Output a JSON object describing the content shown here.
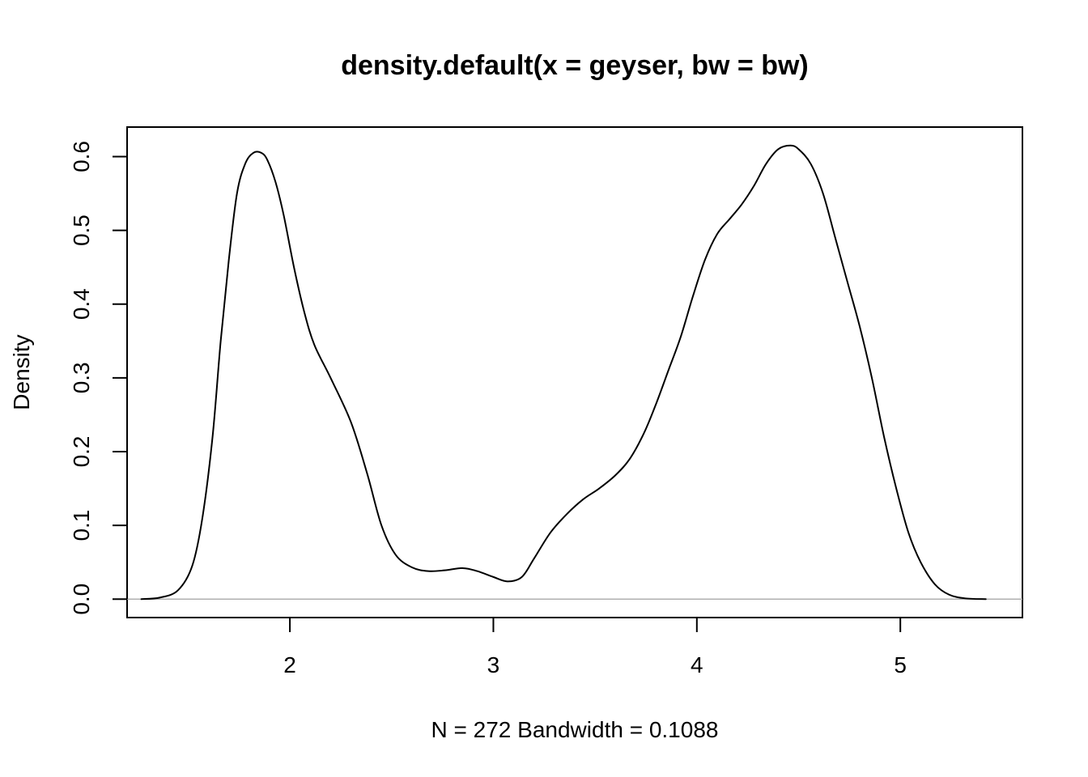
{
  "chart_data": {
    "type": "line",
    "title": "density.default(x = geyser, bw = bw)",
    "xlabel": "N = 272   Bandwidth = 0.1088",
    "ylabel": "Density",
    "xlim": [
      1.2,
      5.6
    ],
    "ylim": [
      -0.025,
      0.64
    ],
    "xticks": [
      2,
      3,
      4,
      5
    ],
    "xtick_labels": [
      "2",
      "3",
      "4",
      "5"
    ],
    "yticks": [
      0.0,
      0.1,
      0.2,
      0.3,
      0.4,
      0.5,
      0.6
    ],
    "ytick_labels": [
      "0.0",
      "0.1",
      "0.2",
      "0.3",
      "0.4",
      "0.5",
      "0.6"
    ],
    "grid": false,
    "baseline": 0,
    "baseline_color": "#b0b0b0",
    "line_color": "#000000",
    "series": [
      {
        "x": [
          1.27,
          1.36,
          1.45,
          1.52,
          1.57,
          1.62,
          1.66,
          1.7,
          1.74,
          1.78,
          1.82,
          1.86,
          1.89,
          1.93,
          1.97,
          2.02,
          2.07,
          2.12,
          2.2,
          2.3,
          2.38,
          2.45,
          2.52,
          2.6,
          2.68,
          2.76,
          2.85,
          2.92,
          3.0,
          3.07,
          3.14,
          3.2,
          3.28,
          3.36,
          3.44,
          3.52,
          3.6,
          3.67,
          3.74,
          3.8,
          3.86,
          3.92,
          3.98,
          4.04,
          4.1,
          4.16,
          4.22,
          4.28,
          4.34,
          4.4,
          4.46,
          4.5,
          4.56,
          4.62,
          4.68,
          4.74,
          4.8,
          4.86,
          4.92,
          4.98,
          5.04,
          5.1,
          5.17,
          5.24,
          5.32,
          5.42
        ],
        "y": [
          0.0,
          0.002,
          0.012,
          0.045,
          0.11,
          0.22,
          0.35,
          0.46,
          0.55,
          0.59,
          0.605,
          0.605,
          0.595,
          0.565,
          0.52,
          0.45,
          0.39,
          0.345,
          0.3,
          0.24,
          0.17,
          0.1,
          0.06,
          0.043,
          0.038,
          0.039,
          0.042,
          0.038,
          0.03,
          0.024,
          0.03,
          0.055,
          0.09,
          0.115,
          0.135,
          0.15,
          0.168,
          0.19,
          0.225,
          0.265,
          0.31,
          0.355,
          0.41,
          0.46,
          0.495,
          0.515,
          0.535,
          0.56,
          0.59,
          0.61,
          0.615,
          0.61,
          0.59,
          0.55,
          0.49,
          0.43,
          0.37,
          0.3,
          0.22,
          0.15,
          0.09,
          0.05,
          0.02,
          0.006,
          0.001,
          0.0
        ]
      }
    ]
  }
}
